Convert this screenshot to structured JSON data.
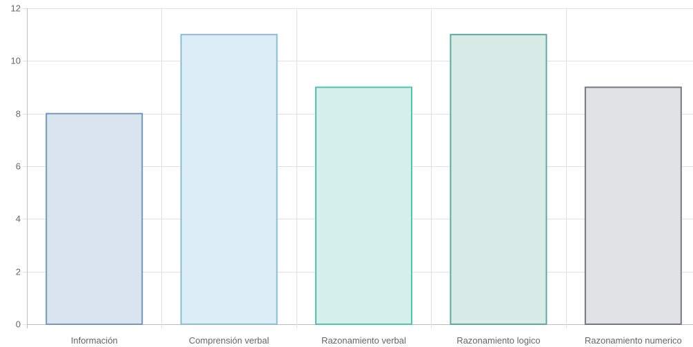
{
  "chart_data": {
    "type": "bar",
    "title": "",
    "xlabel": "",
    "ylabel": "",
    "categories": [
      "Información",
      "Comprensión verbal",
      "Razonamiento verbal",
      "Razonamiento logico",
      "Razonamiento numerico"
    ],
    "values": [
      8,
      11,
      9,
      11,
      9
    ],
    "ylim": [
      0,
      12
    ],
    "yticks": [
      0,
      2,
      4,
      6,
      8,
      10,
      12
    ],
    "grid": true,
    "legend": "none",
    "colors": {
      "fills": [
        "#d9e4ee",
        "#dcedf7",
        "#d5f0ec",
        "#d8ebe7",
        "#e0e2e6"
      ],
      "strokes": [
        "#6f98ba",
        "#89bcd8",
        "#4cc5b0",
        "#5fa99c",
        "#72777f"
      ]
    }
  }
}
